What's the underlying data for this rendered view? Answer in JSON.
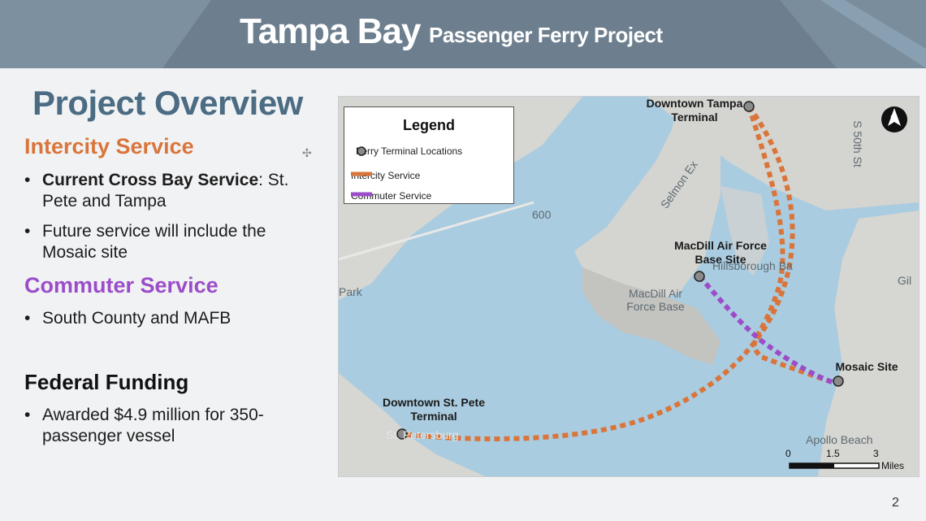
{
  "header": {
    "title": "Tampa Bay",
    "subtitle": "Passenger Ferry Project",
    "background_color": "#6d7f8f"
  },
  "content": {
    "overview_title": "Project Overview",
    "intercity": {
      "heading": "Intercity Service",
      "color": "#d9753a",
      "bullets": [
        {
          "bold": "Current Cross Bay Service",
          "text": ": St. Pete and Tampa"
        },
        {
          "text": "Future service will include the Mosaic site"
        }
      ]
    },
    "commuter": {
      "heading": "Commuter Service",
      "color": "#9b4dc9",
      "bullets": [
        {
          "text": "South County and MAFB"
        }
      ]
    },
    "funding": {
      "heading": "Federal Funding",
      "bullets": [
        {
          "text": "Awarded $4.9 million for 350-passenger vessel"
        }
      ]
    },
    "bullet_char": "•"
  },
  "map": {
    "legend": {
      "title": "Legend",
      "items": [
        {
          "label": "Ferry Terminal Locations",
          "icon": "terminal-dot-icon"
        },
        {
          "label": "Intercity Service",
          "icon": "orange-line-icon"
        },
        {
          "label": "Commuter Service",
          "icon": "purple-line-icon"
        }
      ]
    },
    "terminals": {
      "tampa": "Downtown Tampa Terminal",
      "macdill": "MacDill Air Force Base Site",
      "mosaic": "Mosaic Site",
      "stpete": "Downtown St. Pete Terminal"
    },
    "labels": {
      "road_600": "600",
      "selmon": "Selmon Ex",
      "street_50th": "S 50th St",
      "park": "Park",
      "hillsborough": "Hillsborough Ba",
      "macdill_base": "MacDill Air Force Base",
      "gil": "Gil",
      "apollo": "Apollo Beach",
      "st_pete_city": "St. Petersburg"
    },
    "scale": {
      "ticks": [
        "0",
        "1.5",
        "3"
      ],
      "unit": "Miles"
    },
    "north": "N",
    "colors": {
      "water": "#aacce0",
      "land": "#d4d4d0",
      "intercity": "#d9753a",
      "commuter": "#9b4dc9"
    }
  },
  "page_number": "2"
}
